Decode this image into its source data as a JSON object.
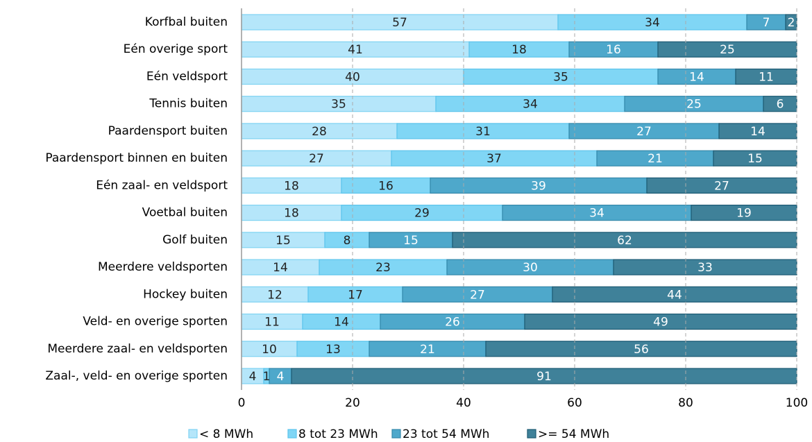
{
  "chart_data": {
    "type": "stacked-barh",
    "categories": [
      "Korfbal buiten",
      "Eén overige sport",
      "Eén veldsport",
      "Tennis buiten",
      "Paardensport buiten",
      "Paardensport binnen en buiten",
      "Eén zaal- en veldsport",
      "Voetbal buiten",
      "Golf buiten",
      "Meerdere veldsporten",
      "Hockey buiten",
      "Veld- en overige sporten",
      "Meerdere zaal- en veldsporten",
      "Zaal-, veld- en overige sporten"
    ],
    "series": [
      {
        "name": "< 8 MWh",
        "color": "#b5e6fa",
        "values": [
          57,
          41,
          40,
          35,
          28,
          27,
          18,
          18,
          15,
          14,
          12,
          11,
          10,
          4
        ]
      },
      {
        "name": "8 tot 23 MWh",
        "color": "#80d6f5",
        "values": [
          34,
          18,
          35,
          34,
          31,
          37,
          16,
          29,
          8,
          23,
          17,
          14,
          13,
          1
        ]
      },
      {
        "name": "23 tot 54 MWh",
        "color": "#4ea8cb",
        "values": [
          7,
          16,
          14,
          25,
          27,
          21,
          39,
          34,
          15,
          30,
          27,
          26,
          21,
          4
        ]
      },
      {
        "name": ">= 54 MWh",
        "color": "#3f8199",
        "values": [
          2,
          25,
          11,
          6,
          14,
          15,
          27,
          19,
          62,
          33,
          44,
          49,
          56,
          91
        ]
      }
    ],
    "xlim": [
      0,
      100
    ],
    "xticks": [
      0,
      20,
      40,
      60,
      80,
      100
    ],
    "grid": true
  }
}
